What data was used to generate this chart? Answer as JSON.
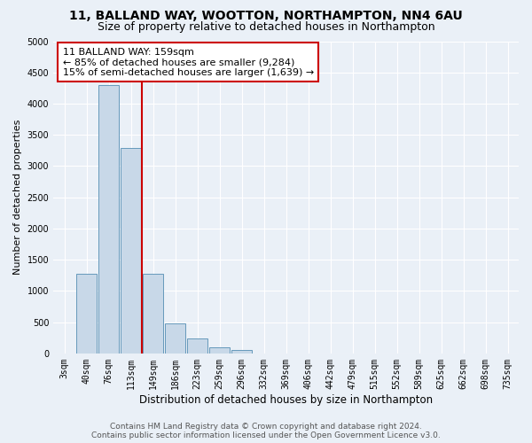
{
  "title": "11, BALLAND WAY, WOOTTON, NORTHAMPTON, NN4 6AU",
  "subtitle": "Size of property relative to detached houses in Northampton",
  "xlabel": "Distribution of detached houses by size in Northampton",
  "ylabel": "Number of detached properties",
  "bin_labels": [
    "3sqm",
    "40sqm",
    "76sqm",
    "113sqm",
    "149sqm",
    "186sqm",
    "223sqm",
    "259sqm",
    "296sqm",
    "332sqm",
    "369sqm",
    "406sqm",
    "442sqm",
    "479sqm",
    "515sqm",
    "552sqm",
    "589sqm",
    "625sqm",
    "662sqm",
    "698sqm",
    "735sqm"
  ],
  "bar_values": [
    0,
    1270,
    4300,
    3290,
    1270,
    475,
    235,
    90,
    50,
    0,
    0,
    0,
    0,
    0,
    0,
    0,
    0,
    0,
    0,
    0,
    0
  ],
  "bar_color": "#c8d8e8",
  "bar_edgecolor": "#6699bb",
  "annotation_line1": "11 BALLAND WAY: 159sqm",
  "annotation_line2": "← 85% of detached houses are smaller (9,284)",
  "annotation_line3": "15% of semi-detached houses are larger (1,639) →",
  "annotation_box_color": "#ffffff",
  "annotation_box_edgecolor": "#cc0000",
  "vline_color": "#cc0000",
  "ylim": [
    0,
    5000
  ],
  "yticks": [
    0,
    500,
    1000,
    1500,
    2000,
    2500,
    3000,
    3500,
    4000,
    4500,
    5000
  ],
  "bg_color": "#eaf0f7",
  "footer_line1": "Contains HM Land Registry data © Crown copyright and database right 2024.",
  "footer_line2": "Contains public sector information licensed under the Open Government Licence v3.0.",
  "title_fontsize": 10,
  "subtitle_fontsize": 9,
  "xlabel_fontsize": 8.5,
  "ylabel_fontsize": 8,
  "tick_fontsize": 7,
  "annotation_fontsize": 8,
  "footer_fontsize": 6.5
}
